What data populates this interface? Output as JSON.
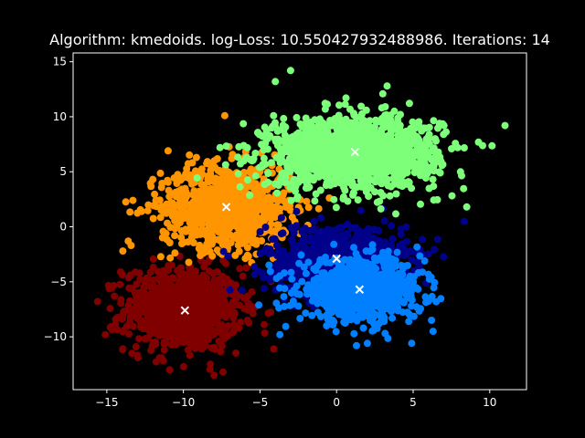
{
  "chart_data": {
    "type": "scatter",
    "title": "Algorithm: kmedoids. log-Loss: 10.550427932488986. Iterations: 14",
    "xlabel": "",
    "ylabel": "",
    "xlim": [
      -17.2,
      12.4
    ],
    "ylim": [
      -14.8,
      15.8
    ],
    "x_ticks": [
      -15,
      -10,
      -5,
      0,
      5,
      10
    ],
    "y_ticks": [
      -10,
      -5,
      0,
      5,
      10,
      15
    ],
    "x_tick_labels": [
      "−15",
      "−10",
      "−5",
      "0",
      "5",
      "10"
    ],
    "y_tick_labels": [
      "−10",
      "−5",
      "0",
      "5",
      "10",
      "15"
    ],
    "grid": false,
    "legend": "none",
    "background": "#000000",
    "clusters": [
      {
        "color": "#800000",
        "center": [
          -10.0,
          -7.5
        ],
        "spread": [
          1.9,
          1.9
        ],
        "medoid": [
          -9.9,
          -7.6
        ]
      },
      {
        "color": "#00008b",
        "center": [
          0.0,
          -3.0
        ],
        "spread": [
          2.3,
          1.6
        ],
        "medoid": [
          0.0,
          -2.9
        ]
      },
      {
        "color": "#007fff",
        "center": [
          1.6,
          -5.8
        ],
        "spread": [
          2.0,
          1.4
        ],
        "medoid": [
          1.5,
          -5.7
        ]
      },
      {
        "color": "#ff9500",
        "center": [
          -7.2,
          1.8
        ],
        "spread": [
          2.1,
          1.9
        ],
        "medoid": [
          -7.2,
          1.8
        ]
      },
      {
        "color": "#7dff7a",
        "center": [
          1.0,
          6.8
        ],
        "spread": [
          2.8,
          1.6
        ],
        "medoid": [
          1.2,
          6.8
        ]
      }
    ],
    "outliers": [
      {
        "cluster": 4,
        "x": 11.0,
        "y": 9.2
      },
      {
        "cluster": 4,
        "x": 8.5,
        "y": 1.8
      },
      {
        "cluster": 4,
        "x": -3.0,
        "y": 14.2
      },
      {
        "cluster": 4,
        "x": 3.3,
        "y": 12.8
      },
      {
        "cluster": 4,
        "x": -4.0,
        "y": 13.2
      },
      {
        "cluster": 3,
        "x": -7.3,
        "y": 10.1
      },
      {
        "cluster": 3,
        "x": -11.0,
        "y": 6.9
      },
      {
        "cluster": 3,
        "x": -13.3,
        "y": 2.4
      },
      {
        "cluster": 3,
        "x": -13.6,
        "y": -1.3
      },
      {
        "cluster": 0,
        "x": -14.1,
        "y": -4.1
      },
      {
        "cluster": 0,
        "x": -15.6,
        "y": -6.8
      },
      {
        "cluster": 0,
        "x": -8.0,
        "y": -13.5
      },
      {
        "cluster": 0,
        "x": -10.9,
        "y": -13.0
      },
      {
        "cluster": 0,
        "x": -4.1,
        "y": -11.1
      },
      {
        "cluster": 0,
        "x": -15.1,
        "y": -9.8
      },
      {
        "cluster": 2,
        "x": 1.3,
        "y": -10.8
      },
      {
        "cluster": 2,
        "x": 6.3,
        "y": -9.5
      },
      {
        "cluster": 2,
        "x": 6.2,
        "y": -8.5
      },
      {
        "cluster": 2,
        "x": -3.7,
        "y": -9.8
      },
      {
        "cluster": 1,
        "x": 4.2,
        "y": -0.2
      }
    ]
  }
}
